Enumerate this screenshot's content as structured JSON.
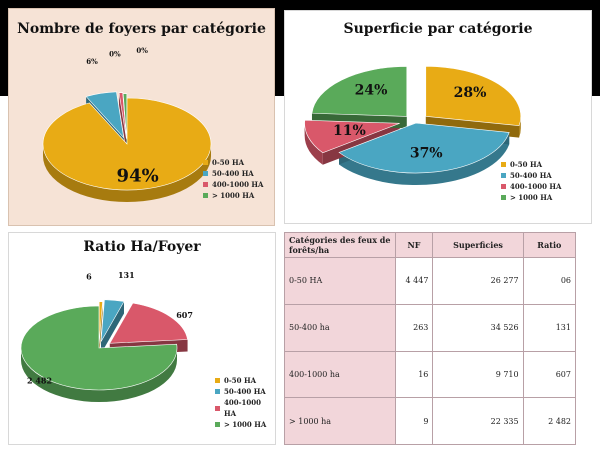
{
  "chart_data": [
    {
      "type": "pie",
      "title": "Nombre de foyers  par catégorie",
      "categories": [
        "0-50 HA",
        "50-400 HA",
        "400-1000 HA",
        "> 1000 HA"
      ],
      "values": [
        94,
        6,
        0,
        0
      ],
      "data_labels": [
        "94%",
        "6%",
        "0%",
        "0%"
      ],
      "colors": [
        "#e8ab15",
        "#4aa6c2",
        "#d9586a",
        "#5aaa5a"
      ],
      "legend": "bottom-right"
    },
    {
      "type": "pie",
      "title": "Superficie par catégorie",
      "categories": [
        "0-50 HA",
        "50-400 HA",
        "400-1000 HA",
        "> 1000 HA"
      ],
      "values": [
        28,
        37,
        11,
        24
      ],
      "data_labels": [
        "28%",
        "37%",
        "11%",
        "24%"
      ],
      "colors": [
        "#e8ab15",
        "#4aa6c2",
        "#d9586a",
        "#5aaa5a"
      ],
      "legend": "bottom-right"
    },
    {
      "type": "pie",
      "title": "Ratio Ha/Foyer",
      "categories": [
        "0-50 HA",
        "50-400 HA",
        "400-1000 HA",
        "> 1000 HA"
      ],
      "values": [
        6,
        131,
        607,
        2482
      ],
      "data_labels": [
        "6",
        "131",
        "607",
        "2 482"
      ],
      "colors": [
        "#e8ab15",
        "#4aa6c2",
        "#d9586a",
        "#5aaa5a"
      ],
      "legend": "bottom-right"
    },
    {
      "type": "table",
      "columns": [
        "Catégories des feux de forêts/ha",
        "NF",
        "Superficies",
        "Ratio"
      ],
      "rows": [
        [
          "0-50 HA",
          "4 447",
          "26 277",
          "06"
        ],
        [
          "50-400 ha",
          "263",
          "34 526",
          "131"
        ],
        [
          "400-1000 ha",
          "16",
          "9 710",
          "607"
        ],
        [
          "> 1000 ha",
          "9",
          "22 335",
          "2 482"
        ]
      ]
    }
  ]
}
